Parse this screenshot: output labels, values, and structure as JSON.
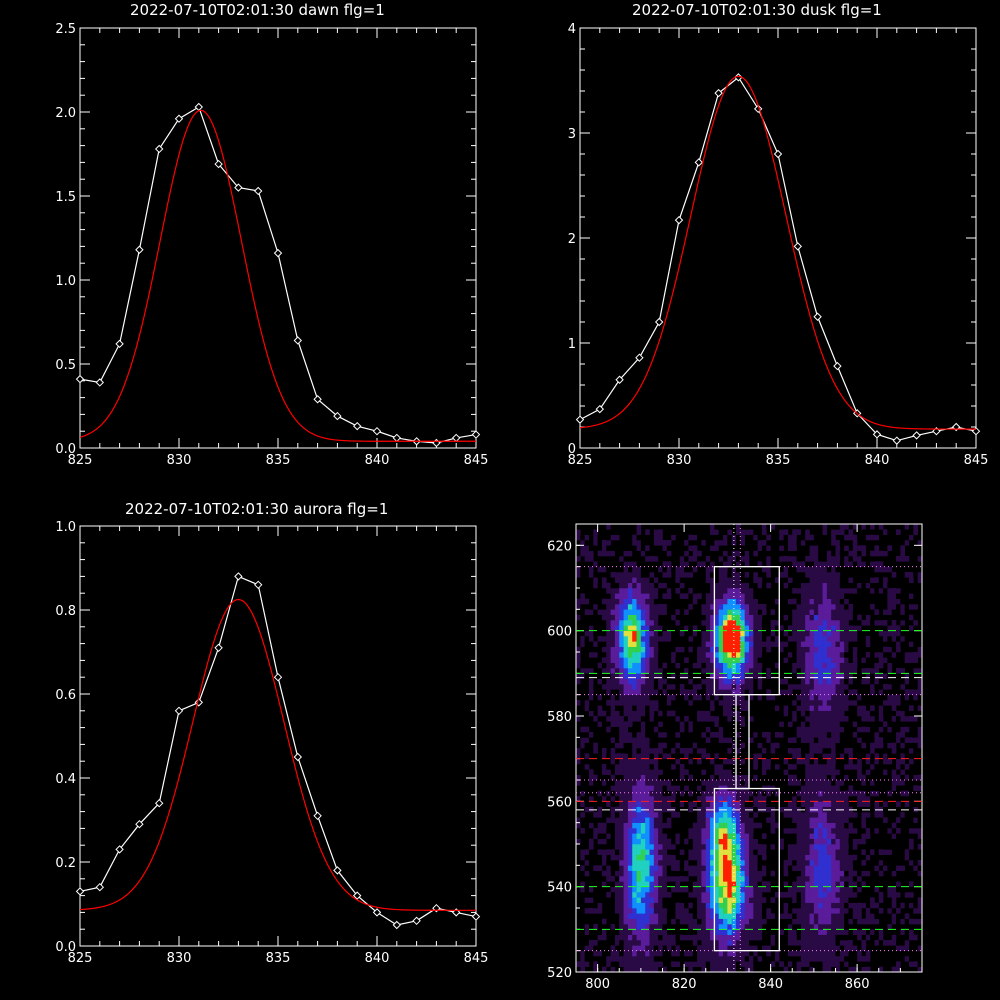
{
  "figure": {
    "background": "#000000",
    "foreground": "#ffffff"
  },
  "chart_data": [
    {
      "type": "line",
      "title": "2022-07-10T02:01:30 dawn flg=1",
      "xlim": [
        825,
        845
      ],
      "ylim": [
        0,
        2.5
      ],
      "xticks": [
        825,
        830,
        835,
        840,
        845
      ],
      "xtick_labels": [
        "825",
        "830",
        "835",
        "840",
        "845"
      ],
      "yticks": [
        0,
        0.5,
        1,
        1.5,
        2,
        2.5
      ],
      "ytick_labels": [
        "0.0",
        "0.5",
        "1.0",
        "1.5",
        "2.0",
        "2.5"
      ],
      "series": [
        {
          "kind": "observed",
          "color": "#ffffff",
          "marker": "diamond",
          "x": [
            825,
            826,
            827,
            828,
            829,
            830,
            831,
            832,
            833,
            834,
            835,
            836,
            837,
            838,
            839,
            840,
            841,
            842,
            843,
            844,
            845
          ],
          "y": [
            0.41,
            0.39,
            0.62,
            1.18,
            1.78,
            1.96,
            2.03,
            1.69,
            1.55,
            1.53,
            1.16,
            0.64,
            0.29,
            0.19,
            0.13,
            0.1,
            0.06,
            0.04,
            0.03,
            0.06,
            0.08
          ]
        },
        {
          "kind": "fit",
          "color": "#ff0000",
          "model": "gaussian",
          "amplitude": 1.97,
          "center": 831.1,
          "sigma": 2.05,
          "baseline": 0.04
        }
      ]
    },
    {
      "type": "line",
      "title": "2022-07-10T02:01:30 dusk flg=1",
      "xlim": [
        825,
        845
      ],
      "ylim": [
        0,
        4
      ],
      "xticks": [
        825,
        830,
        835,
        840,
        845
      ],
      "xtick_labels": [
        "825",
        "830",
        "835",
        "840",
        "845"
      ],
      "yticks": [
        0,
        1,
        2,
        3,
        4
      ],
      "ytick_labels": [
        "0",
        "1",
        "2",
        "3",
        "4"
      ],
      "series": [
        {
          "kind": "observed",
          "color": "#ffffff",
          "marker": "diamond",
          "x": [
            825,
            826,
            827,
            828,
            829,
            830,
            831,
            832,
            833,
            834,
            835,
            836,
            837,
            838,
            839,
            840,
            841,
            842,
            843,
            844,
            845
          ],
          "y": [
            0.27,
            0.37,
            0.65,
            0.86,
            1.2,
            2.17,
            2.72,
            3.38,
            3.53,
            3.23,
            2.8,
            1.92,
            1.25,
            0.78,
            0.33,
            0.13,
            0.07,
            0.12,
            0.16,
            0.2,
            0.16
          ]
        },
        {
          "kind": "fit",
          "color": "#ff0000",
          "model": "gaussian",
          "amplitude": 3.36,
          "center": 833.0,
          "sigma": 2.4,
          "baseline": 0.18
        }
      ]
    },
    {
      "type": "line",
      "title": "2022-07-10T02:01:30 aurora flg=1",
      "xlim": [
        825,
        845
      ],
      "ylim": [
        0,
        1
      ],
      "xticks": [
        825,
        830,
        835,
        840,
        845
      ],
      "xtick_labels": [
        "825",
        "830",
        "835",
        "840",
        "845"
      ],
      "yticks": [
        0,
        0.2,
        0.4,
        0.6,
        0.8,
        1
      ],
      "ytick_labels": [
        "0.0",
        "0.2",
        "0.4",
        "0.6",
        "0.8",
        "1.0"
      ],
      "series": [
        {
          "kind": "observed",
          "color": "#ffffff",
          "marker": "diamond",
          "x": [
            825,
            826,
            827,
            828,
            829,
            830,
            831,
            832,
            833,
            834,
            835,
            836,
            837,
            838,
            839,
            840,
            841,
            842,
            843,
            844,
            845
          ],
          "y": [
            0.13,
            0.14,
            0.23,
            0.29,
            0.34,
            0.56,
            0.58,
            0.71,
            0.88,
            0.86,
            0.64,
            0.45,
            0.31,
            0.18,
            0.12,
            0.08,
            0.05,
            0.06,
            0.09,
            0.08,
            0.07
          ]
        },
        {
          "kind": "fit",
          "color": "#ff0000",
          "model": "gaussian",
          "amplitude": 0.74,
          "center": 833.0,
          "sigma": 2.3,
          "baseline": 0.085
        }
      ]
    },
    {
      "type": "heatmap",
      "xlim": [
        795,
        875
      ],
      "ylim": [
        520,
        625
      ],
      "xticks": [
        800,
        820,
        840,
        860
      ],
      "xtick_labels": [
        "800",
        "820",
        "840",
        "860"
      ],
      "yticks": [
        520,
        540,
        560,
        580,
        600,
        620
      ],
      "ytick_labels": [
        "520",
        "540",
        "560",
        "580",
        "600",
        "620"
      ],
      "colormap": [
        "#000000",
        "#2a0a44",
        "#5a1c9a",
        "#3030d0",
        "#1090ff",
        "#20d0c0",
        "#30d050",
        "#e0e040",
        "#ff2000",
        "#ffffff"
      ],
      "blobs": [
        {
          "x": 808,
          "y": 598,
          "wx": 2.5,
          "wy": 7,
          "peak": 0.72
        },
        {
          "x": 810,
          "y": 545,
          "wx": 2.5,
          "wy": 12,
          "peak": 0.55
        },
        {
          "x": 831,
          "y": 598,
          "wx": 2.6,
          "wy": 6,
          "peak": 1.0
        },
        {
          "x": 830,
          "y": 540,
          "wx": 3.0,
          "wy": 8,
          "peak": 0.78
        },
        {
          "x": 829,
          "y": 553,
          "wx": 2.5,
          "wy": 6,
          "peak": 0.5
        },
        {
          "x": 852,
          "y": 595,
          "wx": 3,
          "wy": 10,
          "peak": 0.3
        },
        {
          "x": 852,
          "y": 545,
          "wx": 3,
          "wy": 12,
          "peak": 0.28
        }
      ],
      "regions": [
        {
          "name": "upper-box",
          "x": [
            827,
            842
          ],
          "y": [
            585,
            615
          ],
          "color": "#ffffff"
        },
        {
          "name": "lower-box",
          "x": [
            827,
            842
          ],
          "y": [
            525,
            563
          ],
          "color": "#ffffff"
        },
        {
          "name": "connector",
          "x": [
            832,
            835
          ],
          "y": [
            563,
            585
          ],
          "color": "#ffffff"
        }
      ],
      "hlines": [
        {
          "y": 615,
          "color": "#ff80ff",
          "style": "dotted"
        },
        {
          "y": 600,
          "color": "#20ff20",
          "style": "dashed"
        },
        {
          "y": 590,
          "color": "#20ff20",
          "style": "dashed"
        },
        {
          "y": 589,
          "color": "#ffffff",
          "style": "dashed"
        },
        {
          "y": 585,
          "color": "#ff80ff",
          "style": "dotted"
        },
        {
          "y": 570,
          "color": "#ff2020",
          "style": "dashed"
        },
        {
          "y": 565,
          "color": "#ff80ff",
          "style": "dotted"
        },
        {
          "y": 562,
          "color": "#ff80ff",
          "style": "dotted"
        },
        {
          "y": 560,
          "color": "#ff2020",
          "style": "dashed"
        },
        {
          "y": 558,
          "color": "#ffffff",
          "style": "dashed"
        },
        {
          "y": 540,
          "color": "#20ff20",
          "style": "dashed"
        },
        {
          "y": 530,
          "color": "#20ff20",
          "style": "dashed"
        },
        {
          "y": 525,
          "color": "#ff80ff",
          "style": "dotted"
        }
      ],
      "vlines": [
        {
          "x": 831.5,
          "color": "#ffffff",
          "style": "dotted"
        },
        {
          "x": 833,
          "color": "#ff80ff",
          "style": "dotted"
        }
      ]
    }
  ]
}
